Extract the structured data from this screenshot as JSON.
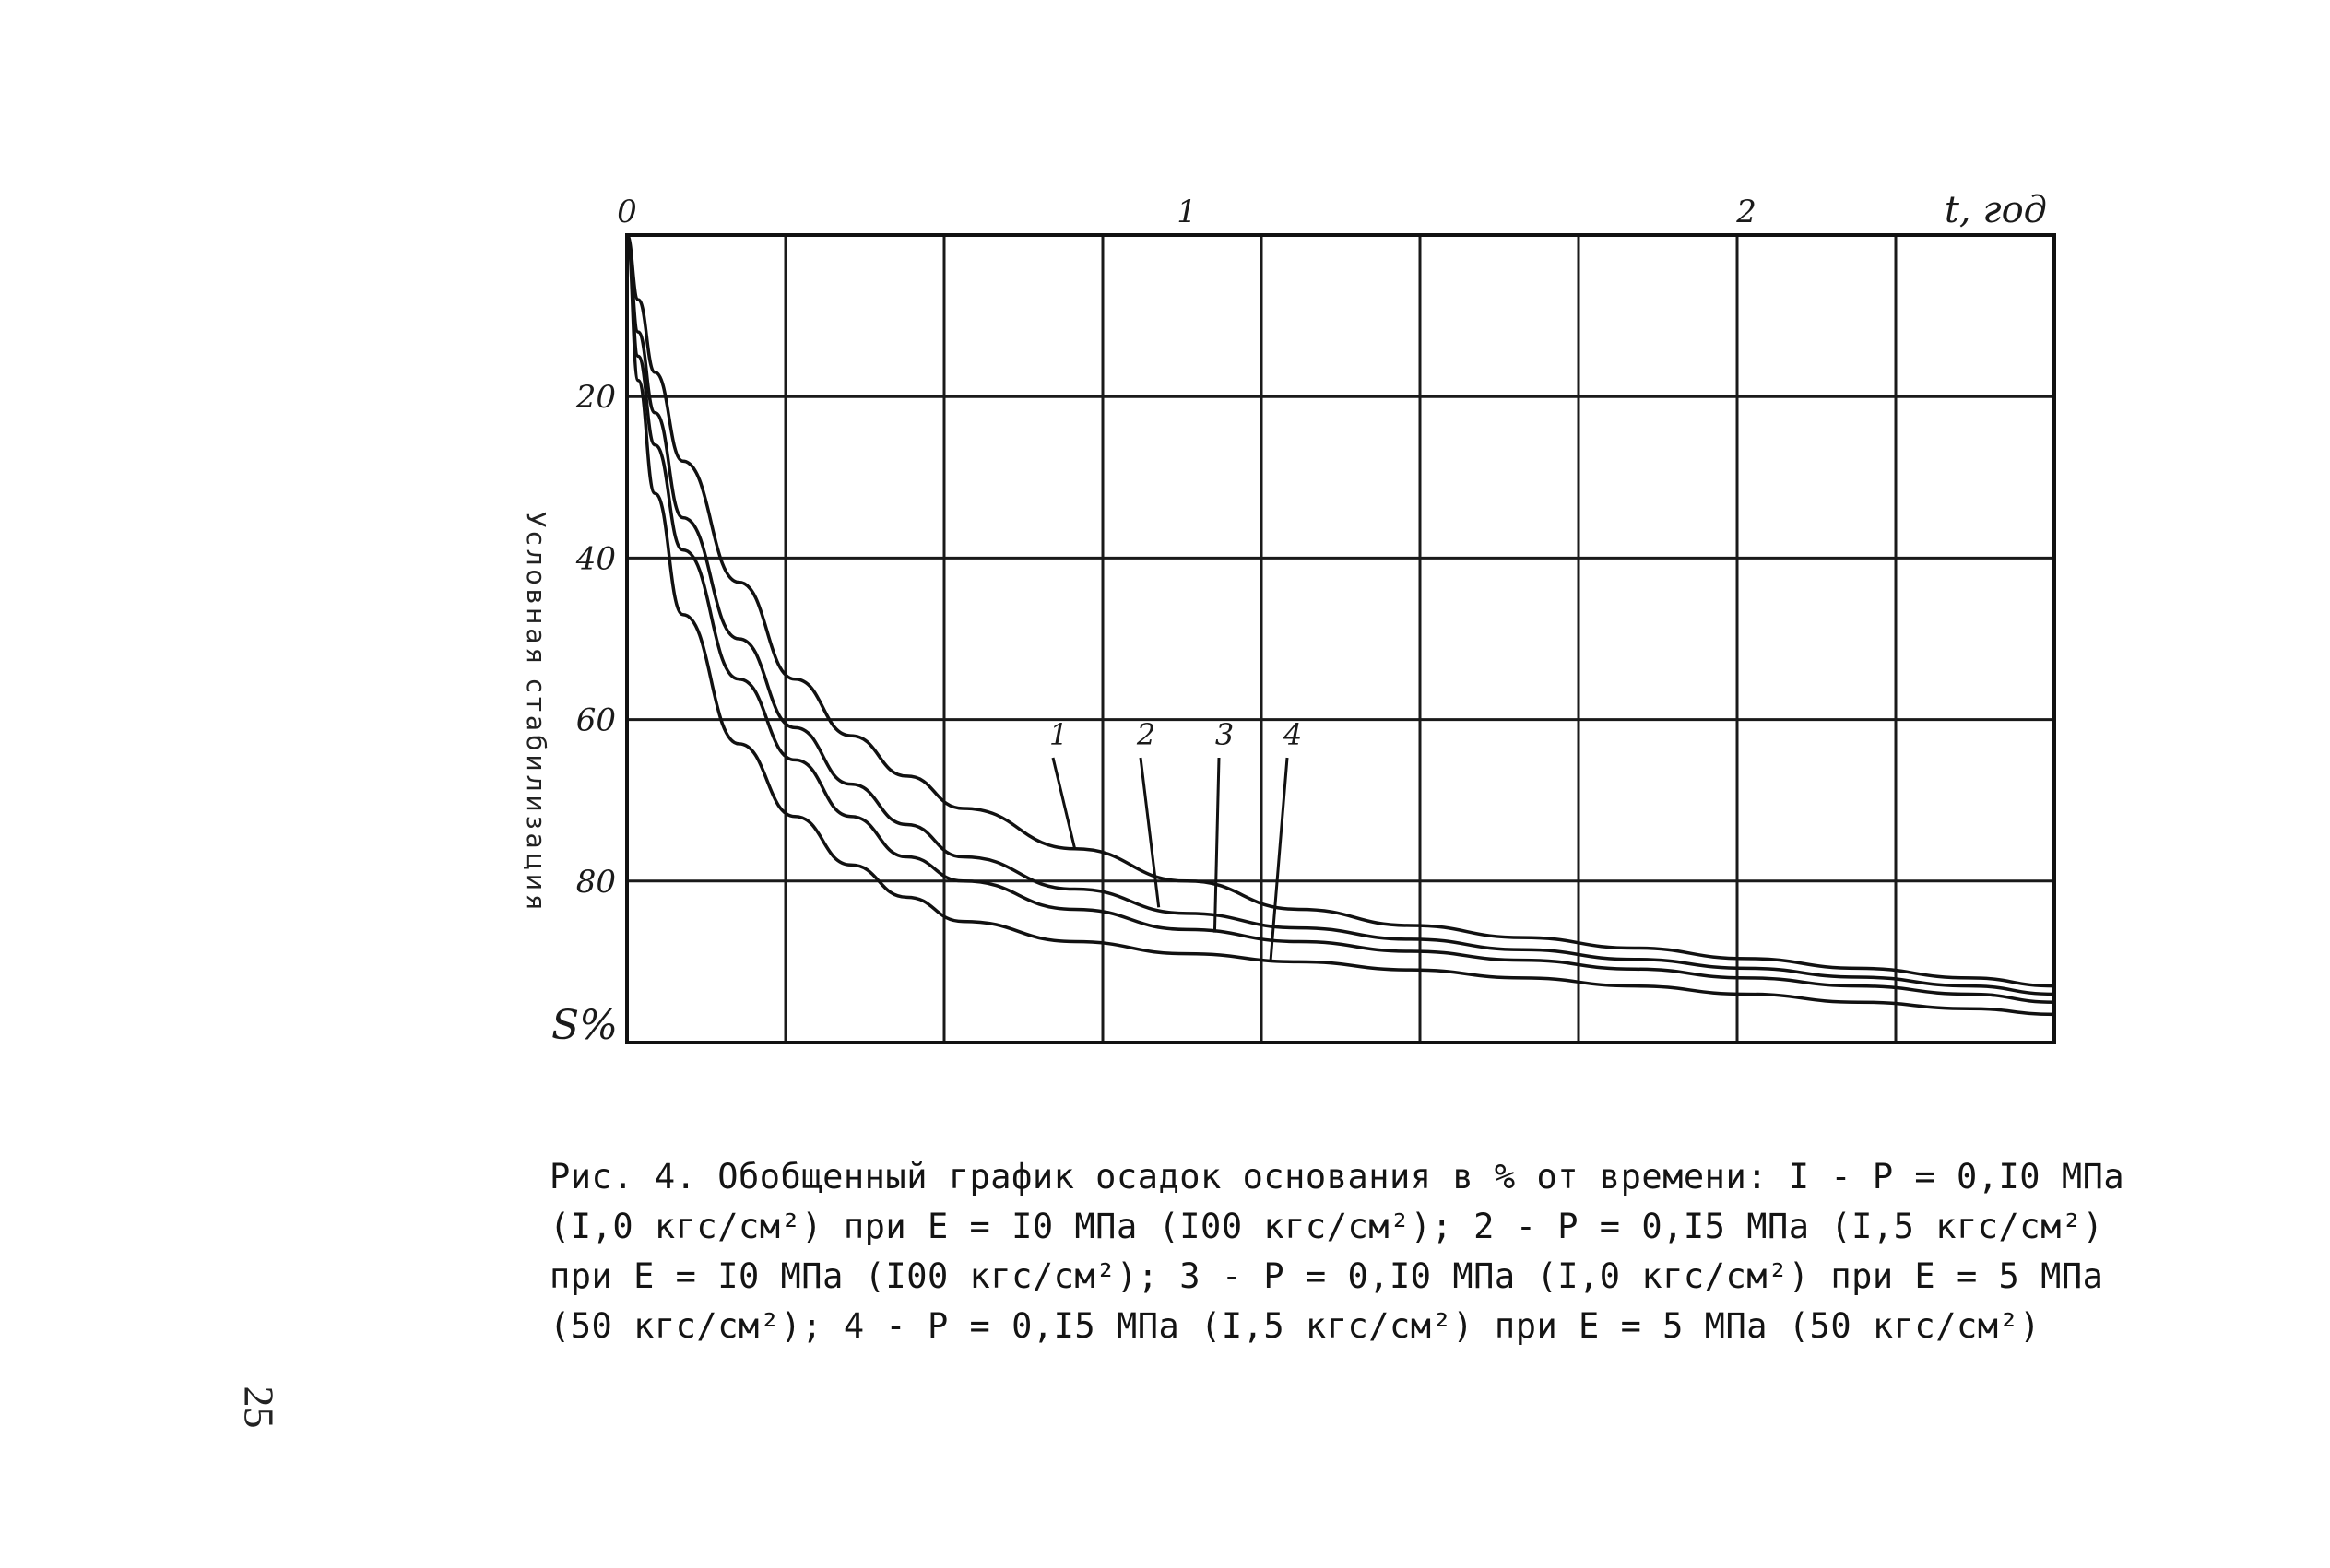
{
  "chart_data": {
    "type": "line",
    "x_axis": {
      "label": "t, год",
      "ticks": [
        0,
        1,
        2
      ],
      "tick_labels": [
        "0",
        "1",
        "2"
      ],
      "range": [
        0,
        2.55
      ],
      "position": "top"
    },
    "y_axis": {
      "label": "Условная стабилизация",
      "unit_label": "S%",
      "ticks": [
        20,
        40,
        60,
        80
      ],
      "tick_labels": [
        "20",
        "40",
        "60",
        "80"
      ],
      "range": [
        0,
        100
      ],
      "inverted": true
    },
    "grid": true,
    "series": [
      {
        "name": "1",
        "x": [
          0,
          0.02,
          0.05,
          0.1,
          0.2,
          0.3,
          0.4,
          0.5,
          0.6,
          0.8,
          1.0,
          1.2,
          1.4,
          1.6,
          1.8,
          2.0,
          2.2,
          2.4,
          2.55
        ],
        "y": [
          0,
          8,
          17,
          28,
          43,
          55,
          62,
          67,
          71,
          76,
          80,
          83.5,
          85.5,
          87,
          88.3,
          89.6,
          90.8,
          92,
          93
        ]
      },
      {
        "name": "2",
        "x": [
          0,
          0.02,
          0.05,
          0.1,
          0.2,
          0.3,
          0.4,
          0.5,
          0.6,
          0.8,
          1.0,
          1.2,
          1.4,
          1.6,
          1.8,
          2.0,
          2.2,
          2.4,
          2.55
        ],
        "y": [
          0,
          12,
          22,
          35,
          50,
          61,
          68,
          73,
          77,
          81,
          84,
          85.8,
          87.2,
          88.5,
          89.7,
          90.8,
          91.9,
          93,
          94
        ]
      },
      {
        "name": "3",
        "x": [
          0,
          0.02,
          0.05,
          0.1,
          0.2,
          0.3,
          0.4,
          0.5,
          0.6,
          0.8,
          1.0,
          1.2,
          1.4,
          1.6,
          1.8,
          2.0,
          2.2,
          2.4,
          2.55
        ],
        "y": [
          0,
          15,
          26,
          39,
          55,
          65,
          72,
          77,
          80,
          83.5,
          86,
          87.5,
          88.7,
          89.8,
          90.9,
          92,
          93,
          94,
          95
        ]
      },
      {
        "name": "4",
        "x": [
          0,
          0.02,
          0.05,
          0.1,
          0.2,
          0.3,
          0.4,
          0.5,
          0.6,
          0.8,
          1.0,
          1.2,
          1.4,
          1.6,
          1.8,
          2.0,
          2.2,
          2.4,
          2.55
        ],
        "y": [
          0,
          18,
          32,
          47,
          63,
          72,
          78,
          82,
          85,
          87.5,
          89,
          90,
          91,
          92,
          93,
          94,
          95,
          95.8,
          96.5
        ]
      }
    ],
    "curve_labels": [
      "1",
      "2",
      "3",
      "4"
    ]
  },
  "caption_lines": [
    "Рис. 4. Обобщенный график осадок основания в % от времени: I - P = 0,I0 МПа",
    "(I,0 кгс/см²) при E = I0 МПа (I00 кгс/см²); 2 - P = 0,I5 МПа (I,5 кгс/см²)",
    "при E = I0 МПа (I00 кгс/см²); 3 - P = 0,I0 МПа (I,0 кгс/см²) при E = 5 МПа",
    "(50 кгс/см²); 4 - P = 0,I5 МПа (I,5 кгс/см²) при E = 5 МПа (50 кгс/см²)"
  ],
  "page_number": "25"
}
